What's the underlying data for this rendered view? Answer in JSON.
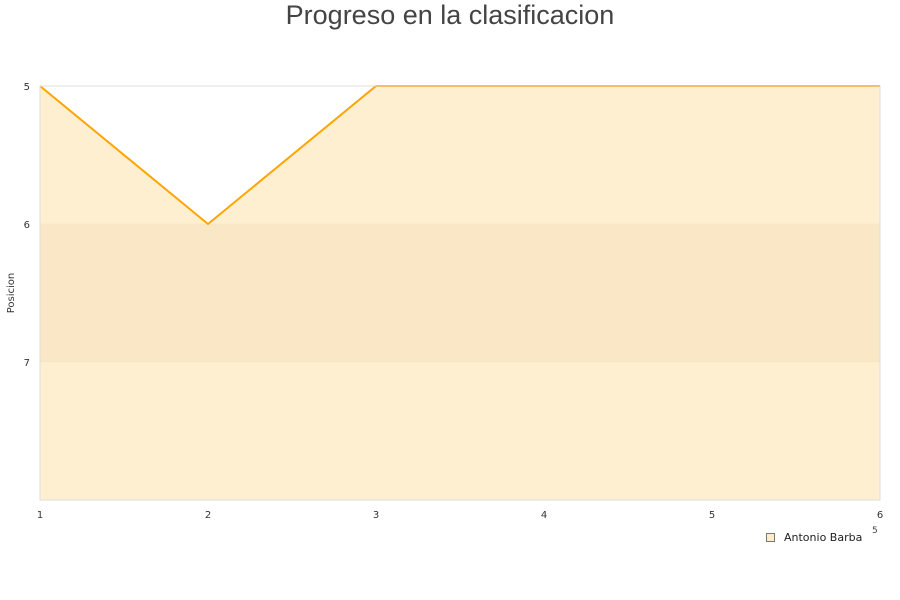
{
  "chart_data": {
    "type": "area",
    "title": "Progreso en la clasificacion",
    "ylabel": "Posicion",
    "xlabel": "",
    "x": [
      1,
      2,
      3,
      4,
      5,
      6
    ],
    "series": [
      {
        "name": "Antonio Barba",
        "values": [
          5,
          6,
          5,
          5,
          5,
          5
        ]
      }
    ],
    "xlim": [
      1,
      6
    ],
    "ylim": [
      5,
      8
    ],
    "y_inverted": true,
    "yticks": [
      5,
      6,
      7
    ],
    "grid": true,
    "legend": "bottom-right",
    "colors": {
      "line": "#ffa500",
      "fill": "#ffecc9",
      "band": "#f5e3c3"
    }
  },
  "stray_label": "5"
}
